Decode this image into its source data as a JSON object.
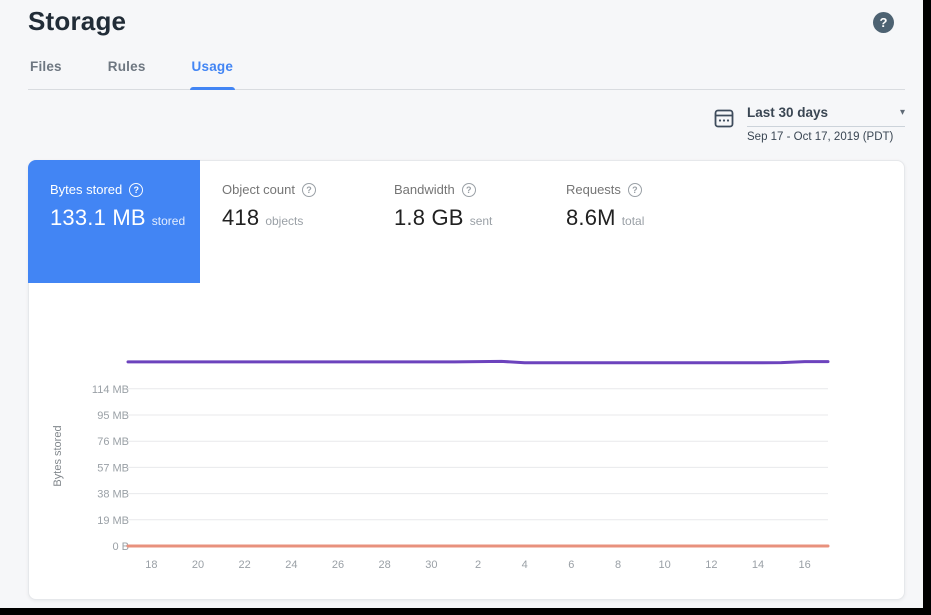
{
  "header": {
    "title": "Storage"
  },
  "icons": {
    "help_glyph": "?",
    "caret_glyph": "▾",
    "metric_help_glyph": "?"
  },
  "tabs": [
    {
      "label": "Files",
      "active": false
    },
    {
      "label": "Rules",
      "active": false
    },
    {
      "label": "Usage",
      "active": true
    }
  ],
  "date_range": {
    "label": "Last 30 days",
    "detail": "Sep 17 - Oct 17, 2019 (PDT)"
  },
  "metrics": [
    {
      "label": "Bytes stored",
      "value": "133.1 MB",
      "unit": "stored",
      "selected": true
    },
    {
      "label": "Object count",
      "value": "418",
      "unit": "objects",
      "selected": false
    },
    {
      "label": "Bandwidth",
      "value": "1.8 GB",
      "unit": "sent",
      "selected": false
    },
    {
      "label": "Requests",
      "value": "8.6M",
      "unit": "total",
      "selected": false
    }
  ],
  "colors": {
    "accent_blue": "#4285f4",
    "series_purple": "#6c43bd",
    "series_orange": "#e8917d"
  },
  "chart_data": {
    "type": "line",
    "title": "",
    "xlabel": "",
    "ylabel": "Bytes stored",
    "x_range": "Sep 17 - Oct 17, 2019",
    "grid": true,
    "legend": "none",
    "x_tick_labels": [
      "18",
      "20",
      "22",
      "24",
      "26",
      "28",
      "30",
      "2",
      "4",
      "6",
      "8",
      "10",
      "12",
      "14",
      "16"
    ],
    "y_ticks": [
      {
        "label": "114 MB",
        "mb": 114
      },
      {
        "label": "95 MB",
        "mb": 95
      },
      {
        "label": "76 MB",
        "mb": 76
      },
      {
        "label": "57 MB",
        "mb": 57
      },
      {
        "label": "38 MB",
        "mb": 38
      },
      {
        "label": "19 MB",
        "mb": 19
      },
      {
        "label": "0 B",
        "mb": 0
      }
    ],
    "series": [
      {
        "name": "bytes-stored",
        "color": "#6c43bd",
        "values_mb": [
          133.5,
          133.5,
          133.5,
          133.5,
          133.5,
          133.5,
          133.5,
          133.5,
          133.5,
          133.5,
          133.5,
          133.5,
          133.5,
          133.5,
          133.5,
          133.7,
          133.9,
          132.9,
          132.9,
          132.9,
          132.9,
          132.9,
          132.9,
          132.9,
          132.9,
          132.9,
          132.9,
          132.9,
          133.0,
          133.7,
          133.7
        ]
      },
      {
        "name": "zero-baseline",
        "color": "#e8917d",
        "values_mb": [
          0,
          0,
          0,
          0,
          0,
          0,
          0,
          0,
          0,
          0,
          0,
          0,
          0,
          0,
          0,
          0,
          0,
          0,
          0,
          0,
          0,
          0,
          0,
          0,
          0,
          0,
          0,
          0,
          0,
          0,
          0
        ]
      }
    ]
  }
}
